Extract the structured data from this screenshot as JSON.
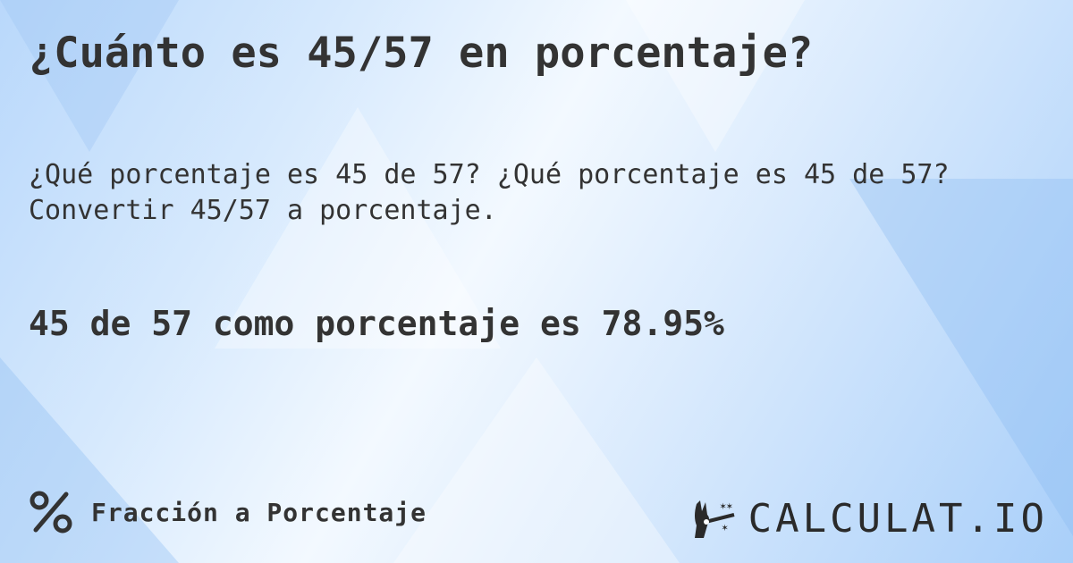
{
  "title": "¿Cuánto es 45/57 en porcentaje?",
  "description": "¿Qué porcentaje es 45 de 57? ¿Qué porcentaje es 45 de 57? Convertir 45/57 a porcentaje.",
  "result": "45 de 57 como porcentaje es 78.95%",
  "footer": {
    "icon": "percent-icon",
    "label": "Fracción a Porcentaje"
  },
  "logo": {
    "icon": "magic-hand-icon",
    "text": "CALCULAT.IO"
  },
  "colors": {
    "text": "#333333",
    "background": "#cfe4fc"
  }
}
